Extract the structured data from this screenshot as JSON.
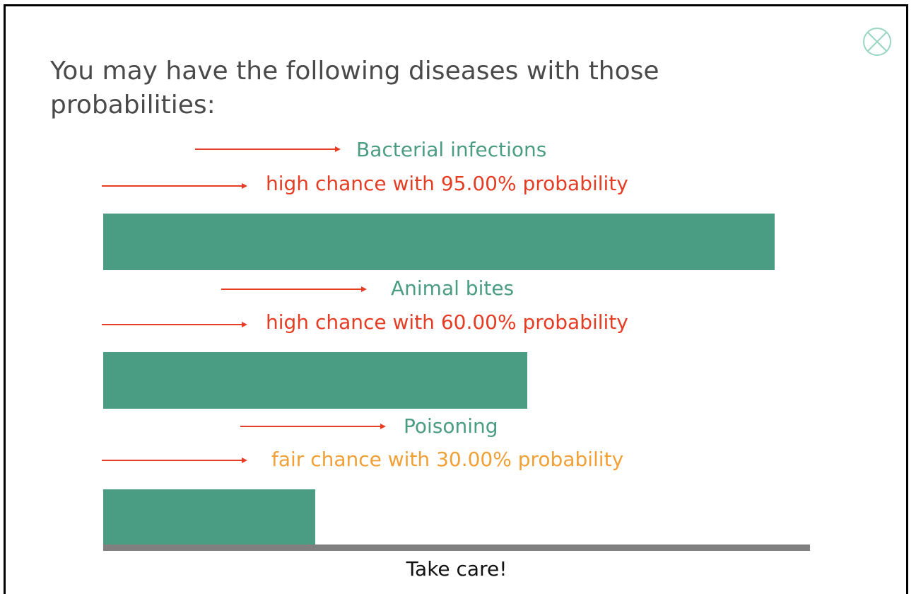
{
  "title": "You may have the following diseases with those probabilities:",
  "close": {
    "icon": "close-circle-icon"
  },
  "results": [
    {
      "disease": "Bacterial infections",
      "chance_text": "high chance with 95.00% probability",
      "probability": 0.95,
      "level_color": "#e53c24"
    },
    {
      "disease": "Animal bites",
      "chance_text": "high chance with 60.00% probability",
      "probability": 0.6,
      "level_color": "#e53c24"
    },
    {
      "disease": "Poisoning",
      "chance_text": "fair chance with 30.00% probability",
      "probability": 0.3,
      "level_color": "#f0a034"
    }
  ],
  "footer": "Take care!",
  "colors": {
    "accent": "#4a9c82",
    "axis": "#808080",
    "arrow": "#e53c24",
    "text": "#4a4a4a"
  }
}
